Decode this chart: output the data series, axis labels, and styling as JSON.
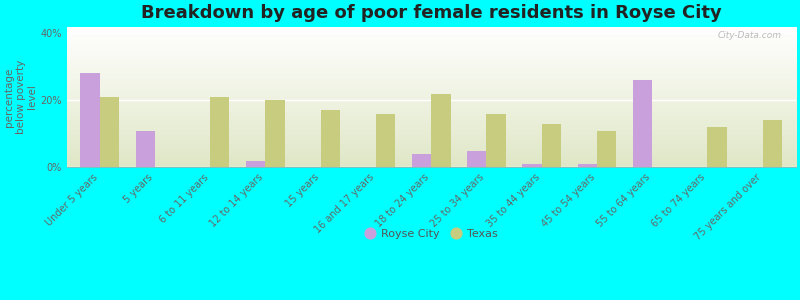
{
  "title": "Breakdown by age of poor female residents in Royse City",
  "categories": [
    "Under 5 years",
    "5 years",
    "6 to 11 years",
    "12 to 14 years",
    "15 years",
    "16 and 17 years",
    "18 to 24 years",
    "25 to 34 years",
    "35 to 44 years",
    "45 to 54 years",
    "55 to 64 years",
    "65 to 74 years",
    "75 years and over"
  ],
  "royse_city": [
    28,
    11,
    0,
    2,
    0,
    0,
    4,
    5,
    1,
    1,
    26,
    0,
    0
  ],
  "texas": [
    21,
    0,
    21,
    20,
    17,
    16,
    22,
    16,
    13,
    11,
    0,
    12,
    14
  ],
  "royse_city_color": "#c9a0dc",
  "texas_color": "#c8cc7e",
  "background_color": "#00ffff",
  "ylabel": "percentage\nbelow poverty\nlevel",
  "ylim": [
    0,
    42
  ],
  "yticks": [
    0,
    20,
    40
  ],
  "ytick_labels": [
    "0%",
    "20%",
    "40%"
  ],
  "title_fontsize": 13,
  "label_fontsize": 7,
  "ylabel_fontsize": 7.5,
  "bar_width": 0.35,
  "legend_labels": [
    "Royse City",
    "Texas"
  ],
  "watermark": "City-Data.com"
}
